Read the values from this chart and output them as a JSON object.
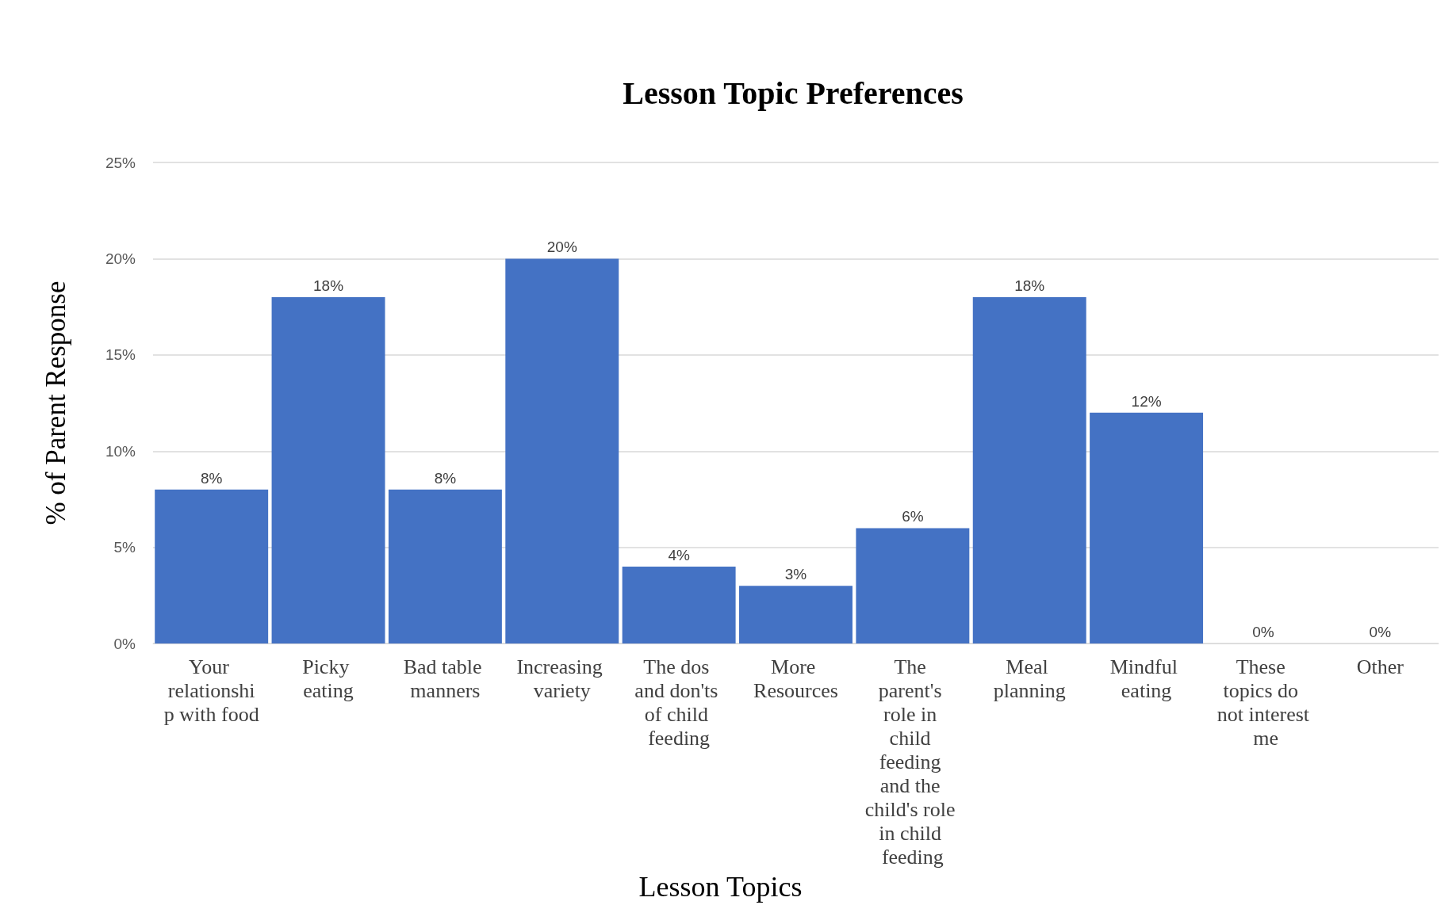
{
  "chart_data": {
    "type": "bar",
    "title": "Lesson Topic Preferences",
    "xlabel": "Lesson Topics",
    "ylabel": "% of Parent Response",
    "categories": [
      "Your relationship with food",
      "Picky eating",
      "Bad table manners",
      "Increasing variety",
      "The dos and don'ts of child feeding",
      "More Resources",
      "The parent's role in child feeding and the child's role in child feeding",
      "Meal planning",
      "Mindful eating",
      "These topics do not interest me",
      "Other"
    ],
    "values": [
      8,
      18,
      8,
      20,
      4,
      3,
      6,
      18,
      12,
      0,
      0
    ],
    "value_labels": [
      "8%",
      "18%",
      "8%",
      "20%",
      "4%",
      "3%",
      "6%",
      "18%",
      "12%",
      "0%",
      "0%"
    ],
    "color": "#4472c4",
    "ylim": [
      0,
      25
    ],
    "yticks": [
      {
        "value": 0,
        "label": "0%"
      },
      {
        "value": 5,
        "label": "5%"
      },
      {
        "value": 10,
        "label": "10%"
      },
      {
        "value": 15,
        "label": "15%"
      },
      {
        "value": 20,
        "label": "20%"
      },
      {
        "value": 25,
        "label": "25%"
      }
    ],
    "grid": "y"
  }
}
